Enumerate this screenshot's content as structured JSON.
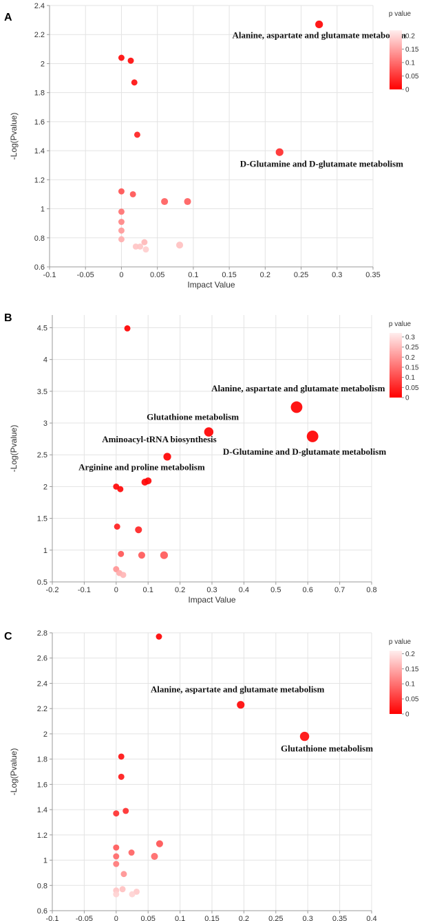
{
  "colors": {
    "strong": "#ff0000",
    "weak": "#ffffff"
  },
  "chart_data": [
    {
      "panel": "A",
      "type": "scatter",
      "xlabel": "Impact Value",
      "ylabel": "-Log(Pvalue)",
      "xlim": [
        -0.1,
        0.35
      ],
      "ylim": [
        0.6,
        2.4
      ],
      "xticks": [
        -0.1,
        -0.05,
        0,
        0.05,
        0.1,
        0.15,
        0.2,
        0.25,
        0.3,
        0.35
      ],
      "xtick_labels": [
        "-0.1",
        "-0.05",
        "0",
        "0.05",
        "0.1",
        "0.15",
        "0.2",
        "0.25",
        "0.3",
        "0.35"
      ],
      "yticks": [
        0.6,
        0.8,
        1,
        1.2,
        1.4,
        1.6,
        1.8,
        2,
        2.2,
        2.4
      ],
      "ytick_labels": [
        "0.6",
        "0.8",
        "1",
        "1.2",
        "1.4",
        "1.6",
        "1.8",
        "2",
        "2.2",
        "2.4"
      ],
      "legend": {
        "title": "p value",
        "min": 0,
        "max": 0.22,
        "ticks": [
          0,
          0.05,
          0.1,
          0.15,
          0.2
        ],
        "tick_labels": [
          "0",
          "0.05",
          "0.1",
          "0.15",
          "0.2"
        ]
      },
      "points": [
        {
          "x": 0.275,
          "y": 2.27,
          "p": 0.005,
          "size": 1.0
        },
        {
          "x": 0.0,
          "y": 2.04,
          "p": 0.009,
          "size": 0.8
        },
        {
          "x": 0.013,
          "y": 2.02,
          "p": 0.01,
          "size": 0.8
        },
        {
          "x": 0.018,
          "y": 1.87,
          "p": 0.014,
          "size": 0.8
        },
        {
          "x": 0.022,
          "y": 1.51,
          "p": 0.031,
          "size": 0.8
        },
        {
          "x": 0.22,
          "y": 1.39,
          "p": 0.041,
          "size": 1.0
        },
        {
          "x": 0.0,
          "y": 1.12,
          "p": 0.076,
          "size": 0.8
        },
        {
          "x": 0.016,
          "y": 1.1,
          "p": 0.079,
          "size": 0.8
        },
        {
          "x": 0.06,
          "y": 1.05,
          "p": 0.089,
          "size": 0.9
        },
        {
          "x": 0.092,
          "y": 1.05,
          "p": 0.089,
          "size": 0.9
        },
        {
          "x": 0.0,
          "y": 0.98,
          "p": 0.105,
          "size": 0.8
        },
        {
          "x": 0.0,
          "y": 0.91,
          "p": 0.123,
          "size": 0.8
        },
        {
          "x": 0.0,
          "y": 0.85,
          "p": 0.141,
          "size": 0.8
        },
        {
          "x": 0.0,
          "y": 0.79,
          "p": 0.162,
          "size": 0.8
        },
        {
          "x": 0.032,
          "y": 0.77,
          "p": 0.17,
          "size": 0.8
        },
        {
          "x": 0.02,
          "y": 0.74,
          "p": 0.182,
          "size": 0.8
        },
        {
          "x": 0.026,
          "y": 0.74,
          "p": 0.182,
          "size": 0.8
        },
        {
          "x": 0.081,
          "y": 0.75,
          "p": 0.178,
          "size": 0.9
        },
        {
          "x": 0.034,
          "y": 0.72,
          "p": 0.19,
          "size": 0.8
        }
      ],
      "annotations": [
        {
          "text": "Alanine, aspartate and glutamate metabolism",
          "x": 0.275,
          "y": 2.175,
          "anchor": "middle"
        },
        {
          "text": "D-Glutamine and D-glutamate metabolism",
          "x": 0.2,
          "y": 1.29,
          "anchor": "start",
          "x_offset": "-0.035"
        }
      ]
    },
    {
      "panel": "B",
      "type": "scatter",
      "xlabel": "Impact Value",
      "ylabel": "-Log(Pvalue)",
      "xlim": [
        -0.2,
        0.8
      ],
      "ylim": [
        0.5,
        4.7
      ],
      "xticks": [
        -0.2,
        -0.1,
        0,
        0.1,
        0.2,
        0.3,
        0.4,
        0.5,
        0.6,
        0.7,
        0.8
      ],
      "xtick_labels": [
        "-0.2",
        "-0.1",
        "0",
        "0.1",
        "0.2",
        "0.3",
        "0.4",
        "0.5",
        "0.6",
        "0.7",
        "0.8"
      ],
      "yticks": [
        0.5,
        1,
        1.5,
        2,
        2.5,
        3,
        3.5,
        4,
        4.5
      ],
      "ytick_labels": [
        "0.5",
        "1",
        "1.5",
        "2",
        "2.5",
        "3",
        "3.5",
        "4",
        "4.5"
      ],
      "legend": {
        "title": "p value",
        "min": 0,
        "max": 0.32,
        "ticks": [
          0,
          0.05,
          0.1,
          0.15,
          0.2,
          0.25,
          0.3
        ],
        "tick_labels": [
          "0",
          "0.05",
          "0.1",
          "0.15",
          "0.2",
          "0.25",
          "0.3"
        ]
      },
      "points": [
        {
          "x": 0.035,
          "y": 4.49,
          "p": 0.0,
          "size": 0.8
        },
        {
          "x": 0.565,
          "y": 3.25,
          "p": 0.001,
          "size": 1.5
        },
        {
          "x": 0.29,
          "y": 2.86,
          "p": 0.001,
          "size": 1.2
        },
        {
          "x": 0.615,
          "y": 2.79,
          "p": 0.002,
          "size": 1.5
        },
        {
          "x": 0.16,
          "y": 2.47,
          "p": 0.003,
          "size": 1.0
        },
        {
          "x": 0.1,
          "y": 2.09,
          "p": 0.008,
          "size": 0.9
        },
        {
          "x": 0.09,
          "y": 2.07,
          "p": 0.009,
          "size": 0.9
        },
        {
          "x": 0.0,
          "y": 2.0,
          "p": 0.01,
          "size": 0.8
        },
        {
          "x": 0.013,
          "y": 1.96,
          "p": 0.011,
          "size": 0.8
        },
        {
          "x": 0.003,
          "y": 1.37,
          "p": 0.043,
          "size": 0.8
        },
        {
          "x": 0.07,
          "y": 1.32,
          "p": 0.048,
          "size": 0.9
        },
        {
          "x": 0.015,
          "y": 0.94,
          "p": 0.115,
          "size": 0.8
        },
        {
          "x": 0.08,
          "y": 0.92,
          "p": 0.12,
          "size": 0.9
        },
        {
          "x": 0.15,
          "y": 0.92,
          "p": 0.12,
          "size": 1.0
        },
        {
          "x": 0.0,
          "y": 0.7,
          "p": 0.2,
          "size": 0.8
        },
        {
          "x": 0.01,
          "y": 0.64,
          "p": 0.23,
          "size": 0.8
        },
        {
          "x": 0.022,
          "y": 0.61,
          "p": 0.245,
          "size": 0.8
        }
      ],
      "annotations": [
        {
          "text": "Alanine, aspartate and glutamate metabolism",
          "x": 0.57,
          "y": 3.5,
          "anchor": "middle"
        },
        {
          "text": "Glutathione metabolism",
          "x": 0.24,
          "y": 3.05,
          "anchor": "middle"
        },
        {
          "text": "Aminoacyl-tRNA biosynthesis",
          "x": 0.135,
          "y": 2.7,
          "anchor": "middle"
        },
        {
          "text": "D-Glutamine and D-glutamate metabolism",
          "x": 0.59,
          "y": 2.5,
          "anchor": "middle"
        },
        {
          "text": "Arginine and proline metabolism",
          "x": 0.08,
          "y": 2.26,
          "anchor": "middle"
        }
      ]
    },
    {
      "panel": "C",
      "type": "scatter",
      "xlabel": "Impact Value",
      "ylabel": "-Log(Pvalue)",
      "xlim": [
        -0.1,
        0.4
      ],
      "ylim": [
        0.6,
        2.8
      ],
      "xticks": [
        -0.1,
        -0.05,
        0,
        0.05,
        0.1,
        0.15,
        0.2,
        0.25,
        0.3,
        0.35,
        0.4
      ],
      "xtick_labels": [
        "-0.1",
        "-0.05",
        "0",
        "0.05",
        "0.1",
        "0.15",
        "0.2",
        "0.25",
        "0.3",
        "0.35",
        "0.4"
      ],
      "yticks": [
        0.6,
        0.8,
        1,
        1.2,
        1.4,
        1.6,
        1.8,
        2,
        2.2,
        2.4,
        2.6,
        2.8
      ],
      "ytick_labels": [
        "0.6",
        "0.8",
        "1",
        "1.2",
        "1.4",
        "1.6",
        "1.8",
        "2",
        "2.2",
        "2.4",
        "2.6",
        "2.8"
      ],
      "legend": {
        "title": "p value",
        "min": 0,
        "max": 0.21,
        "ticks": [
          0,
          0.05,
          0.1,
          0.15,
          0.2
        ],
        "tick_labels": [
          "0",
          "0.05",
          "0.1",
          "0.15",
          "0.2"
        ]
      },
      "points": [
        {
          "x": 0.067,
          "y": 2.77,
          "p": 0.002,
          "size": 0.8
        },
        {
          "x": 0.195,
          "y": 2.23,
          "p": 0.006,
          "size": 1.0
        },
        {
          "x": 0.295,
          "y": 1.98,
          "p": 0.01,
          "size": 1.2
        },
        {
          "x": 0.008,
          "y": 1.82,
          "p": 0.015,
          "size": 0.8
        },
        {
          "x": 0.008,
          "y": 1.66,
          "p": 0.022,
          "size": 0.8
        },
        {
          "x": 0.015,
          "y": 1.39,
          "p": 0.041,
          "size": 0.8
        },
        {
          "x": 0.0,
          "y": 1.37,
          "p": 0.043,
          "size": 0.8
        },
        {
          "x": 0.068,
          "y": 1.13,
          "p": 0.074,
          "size": 0.9
        },
        {
          "x": 0.0,
          "y": 1.1,
          "p": 0.079,
          "size": 0.8
        },
        {
          "x": 0.024,
          "y": 1.06,
          "p": 0.087,
          "size": 0.8
        },
        {
          "x": 0.06,
          "y": 1.03,
          "p": 0.093,
          "size": 0.9
        },
        {
          "x": 0.0,
          "y": 1.03,
          "p": 0.093,
          "size": 0.8
        },
        {
          "x": 0.0,
          "y": 0.97,
          "p": 0.107,
          "size": 0.8
        },
        {
          "x": 0.012,
          "y": 0.89,
          "p": 0.129,
          "size": 0.8
        },
        {
          "x": 0.01,
          "y": 0.77,
          "p": 0.17,
          "size": 0.8
        },
        {
          "x": 0.032,
          "y": 0.75,
          "p": 0.178,
          "size": 0.8
        },
        {
          "x": 0.0,
          "y": 0.76,
          "p": 0.174,
          "size": 0.8
        },
        {
          "x": 0.0,
          "y": 0.73,
          "p": 0.186,
          "size": 0.8
        },
        {
          "x": 0.025,
          "y": 0.73,
          "p": 0.186,
          "size": 0.8
        }
      ],
      "annotations": [
        {
          "text": "Alanine, aspartate and glutamate metabolism",
          "x": 0.19,
          "y": 2.33,
          "anchor": "middle"
        },
        {
          "text": "Glutathione metabolism",
          "x": 0.33,
          "y": 1.86,
          "anchor": "middle"
        }
      ]
    }
  ]
}
